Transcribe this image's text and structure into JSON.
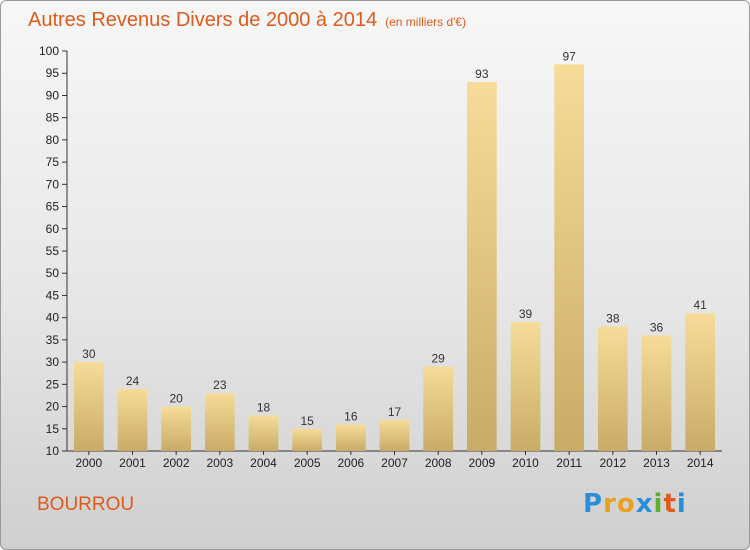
{
  "title": "Autres Revenus Divers de 2000 à 2014",
  "subtitle": "(en milliers d'€)",
  "commune": "BOURROU",
  "logo": {
    "letters": [
      "P",
      "r",
      "o",
      "x",
      "i",
      "t",
      "i"
    ],
    "colors": [
      "#2a8fd8",
      "#e8a020",
      "#e8a020",
      "#2a8fd8",
      "#60b030",
      "#e05a1a",
      "#2a8fd8"
    ]
  },
  "colors": {
    "title": "#e05a1a",
    "bar_top": "#f6dc98",
    "bar_bottom": "#c8ab66",
    "axis": "#333333"
  },
  "chart_data": {
    "type": "bar",
    "categories": [
      "2000",
      "2001",
      "2002",
      "2003",
      "2004",
      "2005",
      "2006",
      "2007",
      "2008",
      "2009",
      "2010",
      "2011",
      "2012",
      "2013",
      "2014"
    ],
    "values": [
      30,
      24,
      20,
      23,
      18,
      15,
      16,
      17,
      29,
      93,
      39,
      97,
      38,
      36,
      41
    ],
    "ylim": [
      10,
      100
    ],
    "yticks": [
      10,
      15,
      20,
      25,
      30,
      35,
      40,
      45,
      50,
      55,
      60,
      65,
      70,
      75,
      80,
      85,
      90,
      95,
      100
    ],
    "grid": false,
    "data_labels": true
  }
}
